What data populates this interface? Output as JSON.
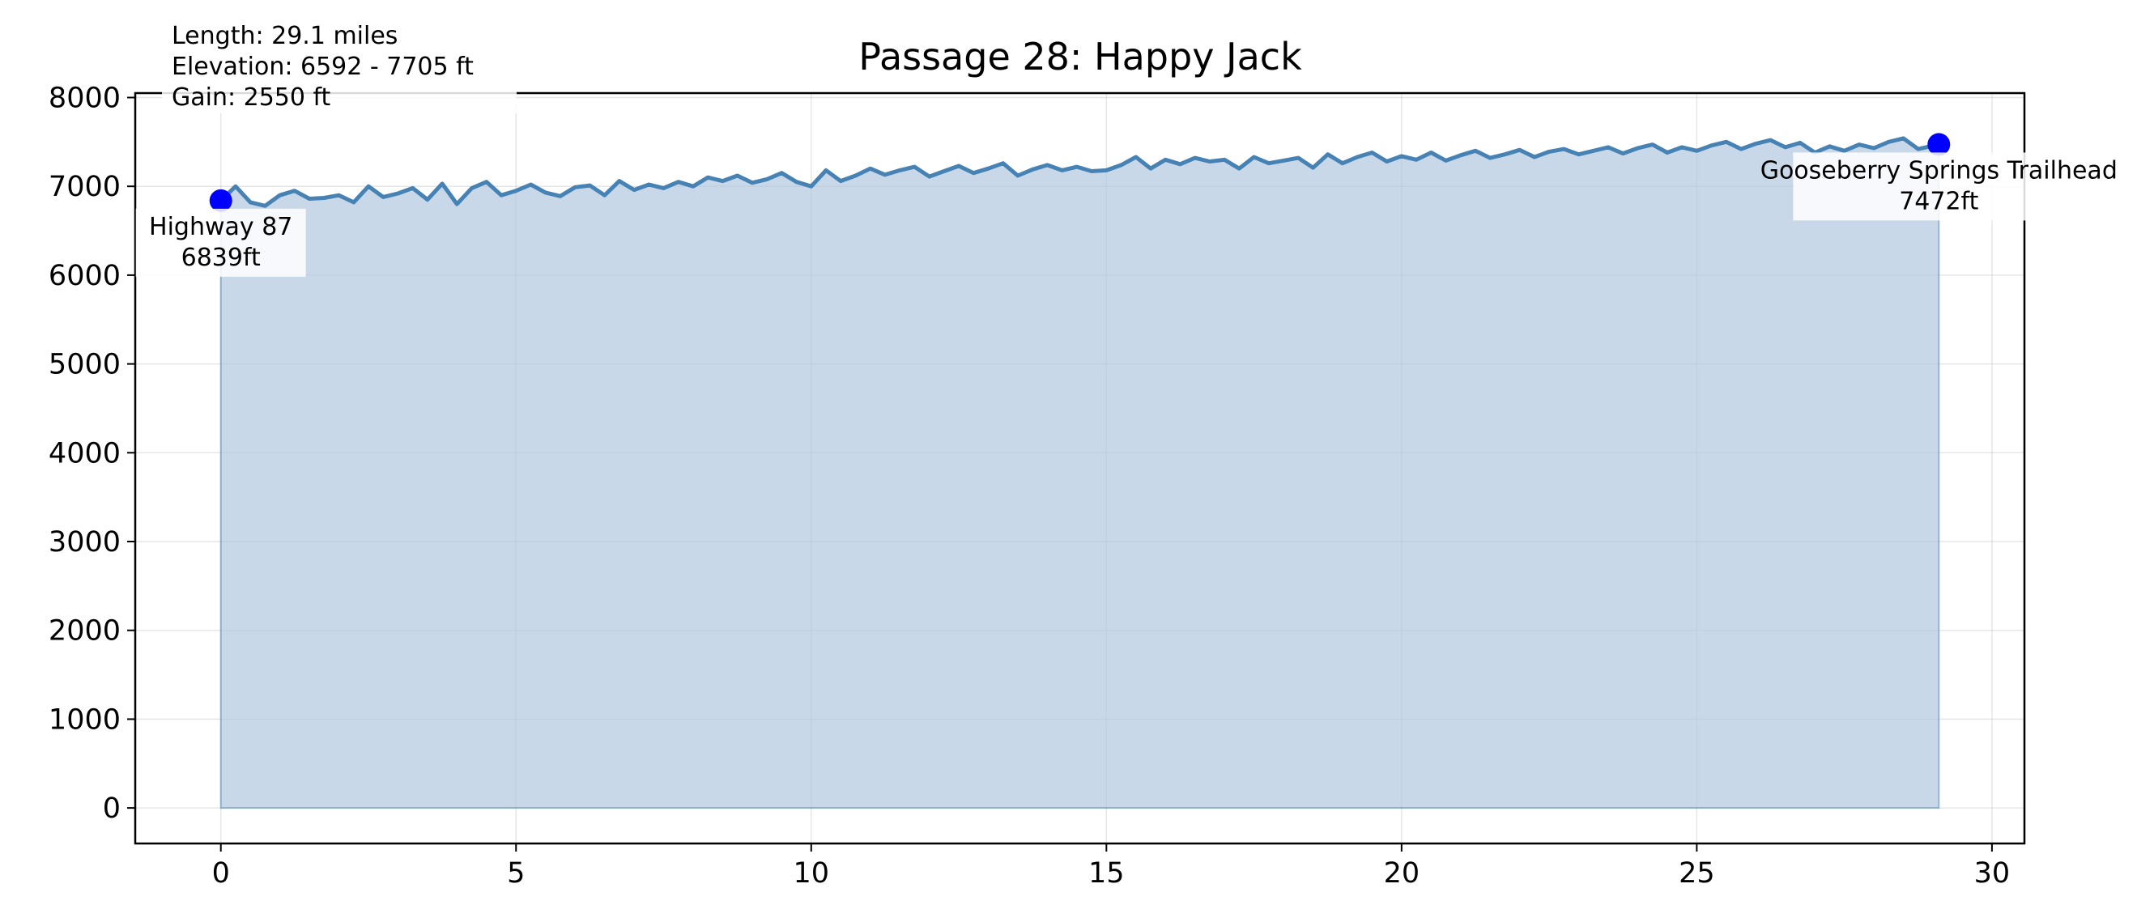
{
  "chart_data": {
    "type": "area",
    "title": "Passage 28: Happy Jack",
    "xlabel": "",
    "ylabel": "",
    "xlim": [
      -1.45,
      30.55
    ],
    "ylim": [
      -400,
      8050
    ],
    "xticks": [
      0,
      5,
      10,
      15,
      20,
      25,
      30
    ],
    "yticks": [
      0,
      1000,
      2000,
      3000,
      4000,
      5000,
      6000,
      7000,
      8000
    ],
    "grid": true,
    "line_color": "#4682b4",
    "fill_color": "#b0c8de",
    "point_color": "#0000ff",
    "stats": {
      "length": "Length: 29.1 miles",
      "elevation": "Elevation: 6592 - 7705 ft",
      "gain": "Gain: 2550 ft"
    },
    "series": [
      {
        "x": [
          0.0,
          0.25,
          0.5,
          0.75,
          1.0,
          1.25,
          1.5,
          1.75,
          2.0,
          2.25,
          2.5,
          2.75,
          3.0,
          3.25,
          3.5,
          3.75,
          4.0,
          4.25,
          4.5,
          4.75,
          5.0,
          5.25,
          5.5,
          5.75,
          6.0,
          6.25,
          6.5,
          6.75,
          7.0,
          7.25,
          7.5,
          7.75,
          8.0,
          8.25,
          8.5,
          8.75,
          9.0,
          9.25,
          9.5,
          9.75,
          10.0,
          10.25,
          10.5,
          10.75,
          11.0,
          11.25,
          11.5,
          11.75,
          12.0,
          12.25,
          12.5,
          12.75,
          13.0,
          13.25,
          13.5,
          13.75,
          14.0,
          14.25,
          14.5,
          14.75,
          15.0,
          15.25,
          15.5,
          15.75,
          16.0,
          16.25,
          16.5,
          16.75,
          17.0,
          17.25,
          17.5,
          17.75,
          18.0,
          18.25,
          18.5,
          18.75,
          19.0,
          19.25,
          19.5,
          19.75,
          20.0,
          20.25,
          20.5,
          20.75,
          21.0,
          21.25,
          21.5,
          21.75,
          22.0,
          22.25,
          22.5,
          22.75,
          23.0,
          23.25,
          23.5,
          23.75,
          24.0,
          24.25,
          24.5,
          24.75,
          25.0,
          25.25,
          25.5,
          25.75,
          26.0,
          26.25,
          26.5,
          26.75,
          27.0,
          27.25,
          27.5,
          27.75,
          28.0,
          28.25,
          28.5,
          28.75,
          29.1
        ],
        "y": [
          6839,
          7000,
          6820,
          6780,
          6900,
          6950,
          6860,
          6870,
          6900,
          6820,
          7000,
          6880,
          6920,
          6980,
          6850,
          7030,
          6800,
          6980,
          7050,
          6900,
          6950,
          7020,
          6930,
          6890,
          6990,
          7010,
          6900,
          7060,
          6960,
          7020,
          6980,
          7050,
          7000,
          7100,
          7060,
          7120,
          7040,
          7080,
          7150,
          7050,
          7000,
          7180,
          7060,
          7120,
          7200,
          7130,
          7180,
          7220,
          7110,
          7170,
          7230,
          7150,
          7200,
          7260,
          7120,
          7190,
          7240,
          7180,
          7220,
          7170,
          7180,
          7240,
          7330,
          7200,
          7300,
          7250,
          7320,
          7280,
          7300,
          7200,
          7330,
          7260,
          7290,
          7320,
          7210,
          7360,
          7260,
          7330,
          7380,
          7280,
          7340,
          7300,
          7380,
          7290,
          7350,
          7400,
          7320,
          7360,
          7410,
          7330,
          7390,
          7420,
          7360,
          7400,
          7440,
          7370,
          7430,
          7470,
          7380,
          7440,
          7400,
          7460,
          7500,
          7420,
          7480,
          7520,
          7440,
          7490,
          7380,
          7450,
          7400,
          7470,
          7430,
          7500,
          7540,
          7420,
          7472
        ]
      }
    ],
    "points": [
      {
        "x": 0.0,
        "y": 6839,
        "label": "Highway 87",
        "elev": "6839ft"
      },
      {
        "x": 29.1,
        "y": 7472,
        "label": "Gooseberry Springs Trailhead",
        "elev": "7472ft"
      }
    ]
  }
}
